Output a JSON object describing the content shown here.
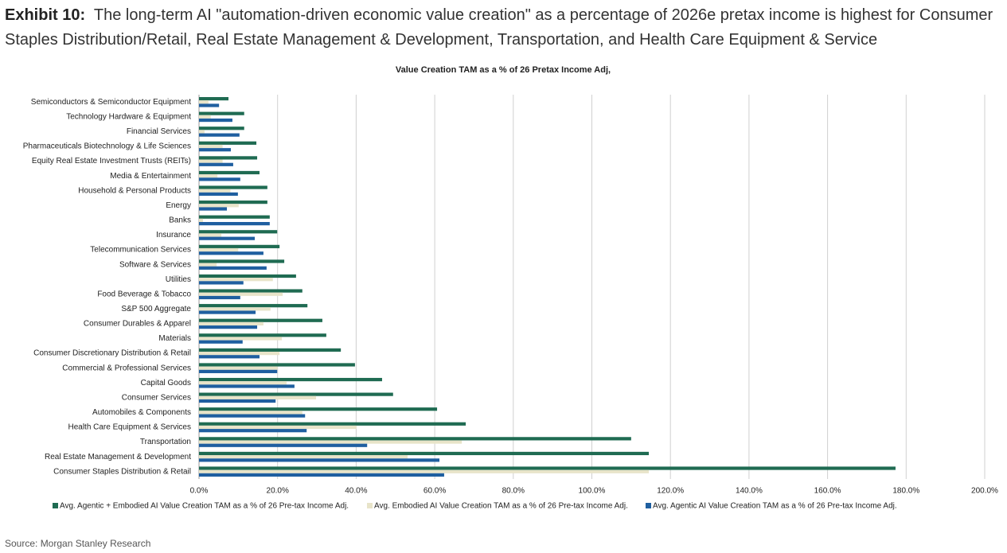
{
  "chart_data": {
    "type": "hbar",
    "exhibit_label": "Exhibit 10:",
    "headline": "The long-term AI \"automation-driven economic value creation\" as a percentage of 2026e pretax income is highest for Consumer Staples Distribution/Retail, Real Estate Management & Development, Transportation, and Health Care Equipment & Service",
    "title": "Value Creation TAM as a % of 26 Pretax Income Adj,",
    "source": "Source: Morgan Stanley Research",
    "categories": [
      "Semiconductors & Semiconductor Equipment",
      "Technology Hardware & Equipment",
      "Financial Services",
      "Pharmaceuticals Biotechnology & Life Sciences",
      "Equity Real Estate Investment Trusts (REITs)",
      "Media & Entertainment",
      "Household & Personal Products",
      "Energy",
      "Banks",
      "Insurance",
      "Telecommunication Services",
      "Software & Services",
      "Utilities",
      "Food Beverage & Tobacco",
      "S&P 500 Aggregate",
      "Consumer Durables & Apparel",
      "Materials",
      "Consumer Discretionary Distribution & Retail",
      "Commercial & Professional Services",
      "Capital Goods",
      "Consumer Services",
      "Automobiles & Components",
      "Health Care Equipment & Services",
      "Transportation",
      "Real Estate Management & Development",
      "Consumer Staples Distribution & Retail"
    ],
    "series": [
      {
        "name": "Avg. Agentic + Embodied AI Value Creation TAM as a % of 26 Pre-tax Income Adj.",
        "color": "#1f6b52",
        "values": [
          7.5,
          11.5,
          11.5,
          14.6,
          14.8,
          15.4,
          17.4,
          17.4,
          18.0,
          19.9,
          20.5,
          21.7,
          24.7,
          26.3,
          27.6,
          31.4,
          32.4,
          36.1,
          39.7,
          46.6,
          49.4,
          60.6,
          67.9,
          110.0,
          114.5,
          177.3
        ]
      },
      {
        "name": "Avg. Embodied AI Value Creation TAM as a % of 26 Pre-tax Income Adj.",
        "color": "#e8e4c9",
        "values": [
          2.4,
          3.0,
          1.4,
          6.0,
          6.0,
          4.7,
          8.0,
          10.1,
          1.0,
          5.7,
          10.0,
          4.5,
          18.8,
          21.3,
          18.2,
          16.4,
          21.1,
          20.5,
          20.0,
          22.3,
          29.8,
          26.3,
          40.1,
          66.9,
          53.1,
          114.5
        ]
      },
      {
        "name": "Avg. Agentic AI Value Creation TAM as a % of 26 Pre-tax Income Adj.",
        "color": "#1f5fa0",
        "values": [
          5.1,
          8.5,
          10.3,
          8.1,
          8.7,
          10.5,
          9.9,
          7.1,
          18.0,
          14.2,
          16.4,
          17.2,
          11.3,
          10.5,
          14.4,
          14.8,
          11.1,
          15.4,
          19.9,
          24.3,
          19.5,
          27.0,
          27.4,
          42.8,
          61.2,
          62.4
        ]
      }
    ],
    "xlim": [
      0,
      200
    ],
    "xticks": [
      {
        "value": 0,
        "label": "0.0%"
      },
      {
        "value": 20,
        "label": "20.0%"
      },
      {
        "value": 40,
        "label": "40.0%"
      },
      {
        "value": 60,
        "label": "60.0%"
      },
      {
        "value": 80,
        "label": "80.0%"
      },
      {
        "value": 100,
        "label": "100.0%"
      },
      {
        "value": 120,
        "label": "120.0%"
      },
      {
        "value": 140,
        "label": "140.0%"
      },
      {
        "value": 160,
        "label": "160.0%"
      },
      {
        "value": 180,
        "label": "180.0%"
      },
      {
        "value": 200,
        "label": "200.0%"
      }
    ],
    "grid": true,
    "grid_color": "#d0d0d0",
    "legend": "bottom"
  }
}
